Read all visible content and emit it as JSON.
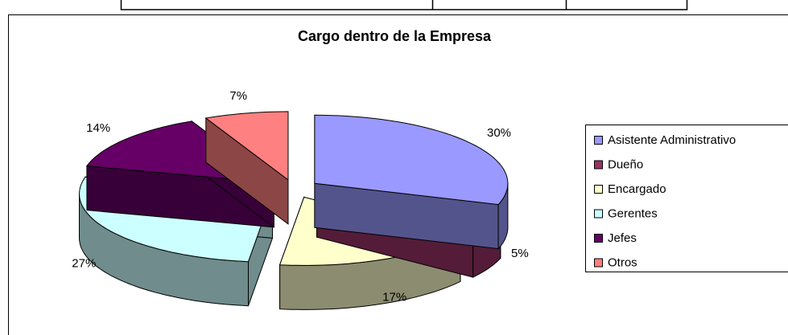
{
  "chart_data": {
    "type": "pie",
    "title": "Cargo dentro de la Empresa",
    "categories": [
      "Asistente Administrativo",
      "Dueño",
      "Encargado",
      "Gerentes",
      "Jefes",
      "Otros"
    ],
    "values": [
      30,
      5,
      17,
      27,
      14,
      7
    ],
    "value_labels": [
      "30%",
      "5%",
      "17%",
      "27%",
      "14%",
      "7%"
    ],
    "colors": [
      "#9999ff",
      "#993366",
      "#ffffcc",
      "#ccffff",
      "#660066",
      "#ff8080"
    ],
    "legend": "right"
  }
}
